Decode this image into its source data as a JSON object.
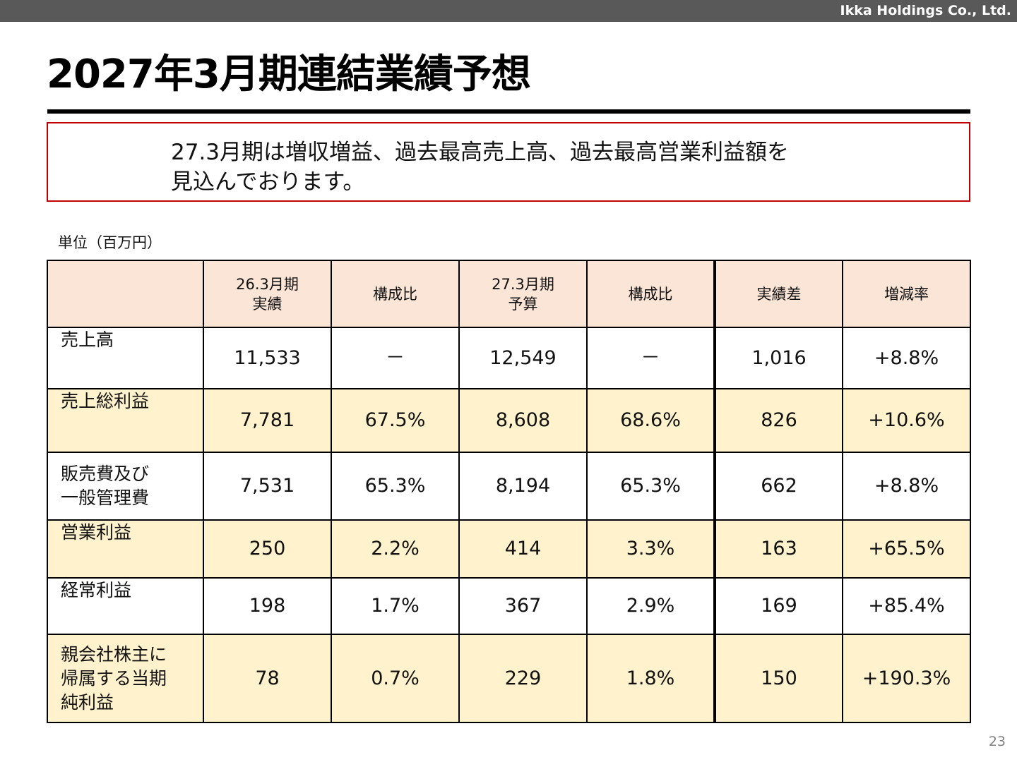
{
  "header": {
    "company": "Ikka Holdings Co., Ltd."
  },
  "title": "2027年3月期連結業績予想",
  "summary": {
    "line1": "27.3月期は増収増益、過去最高売上高、過去最高営業利益額を",
    "line2": "見込んでおります。"
  },
  "unit_label": "単位（百万円）",
  "table": {
    "headers": {
      "col1_line1": "26.3月期",
      "col1_line2": "実績",
      "col2": "構成比",
      "col3_line1": "27.3月期",
      "col3_line2": "予算",
      "col4": "構成比",
      "col5": "実績差",
      "col6": "増減率"
    },
    "rows": [
      {
        "label": [
          "売上高"
        ],
        "actual": "11,533",
        "ratio_actual": "－",
        "budget": "12,549",
        "ratio_budget": "－",
        "diff": "1,016",
        "rate": "+8.8%"
      },
      {
        "label": [
          "売上総利益"
        ],
        "actual": "7,781",
        "ratio_actual": "67.5%",
        "budget": "8,608",
        "ratio_budget": "68.6%",
        "diff": "826",
        "rate": "+10.6%"
      },
      {
        "label": [
          "販売費及び",
          "一般管理費"
        ],
        "actual": "7,531",
        "ratio_actual": "65.3%",
        "budget": "8,194",
        "ratio_budget": "65.3%",
        "diff": "662",
        "rate": "+8.8%"
      },
      {
        "label": [
          "営業利益"
        ],
        "actual": "250",
        "ratio_actual": "2.2%",
        "budget": "414",
        "ratio_budget": "3.3%",
        "diff": "163",
        "rate": "+65.5%"
      },
      {
        "label": [
          "経常利益"
        ],
        "actual": "198",
        "ratio_actual": "1.7%",
        "budget": "367",
        "ratio_budget": "2.9%",
        "diff": "169",
        "rate": "+85.4%"
      },
      {
        "label": [
          "親会社株主に",
          "帰属する当期",
          "純利益"
        ],
        "actual": "78",
        "ratio_actual": "0.7%",
        "budget": "229",
        "ratio_budget": "1.8%",
        "diff": "150",
        "rate": "+190.3%"
      }
    ]
  },
  "page_number": "23",
  "colors": {
    "topbar": "#595959",
    "box_border": "#c00000",
    "header_fill": "#fbe5d6",
    "shaded_row_fill": "#fff2cc"
  }
}
